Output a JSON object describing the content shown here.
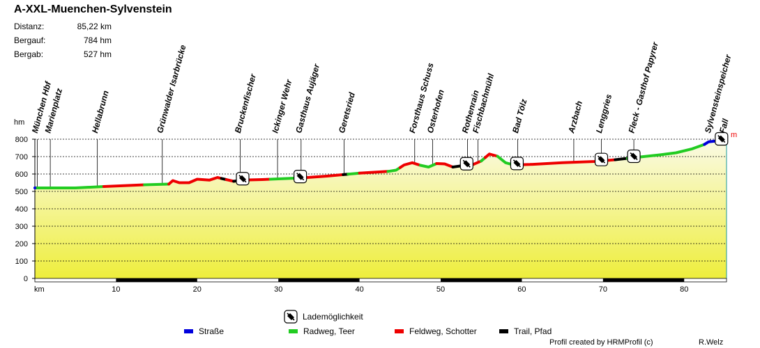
{
  "header": {
    "title": "A-XXL-Muenchen-Sylvenstein",
    "stats": [
      {
        "label": "Distanz:",
        "value": "85,22 km"
      },
      {
        "label": "Bergauf:",
        "value": "784 hm"
      },
      {
        "label": "Bergab:",
        "value": "527 hm"
      }
    ]
  },
  "footer": {
    "credit": "Profil created by HRMProfil (c)",
    "author": "R.Welz"
  },
  "chart_data": {
    "type": "area",
    "title": "A-XXL-Muenchen-Sylvenstein",
    "xlabel": "km",
    "ylabel": "hm",
    "xlim": [
      0,
      85.22
    ],
    "ylim": [
      0,
      800
    ],
    "x_ticks": [
      10,
      20,
      30,
      40,
      50,
      60,
      70,
      80
    ],
    "y_ticks": [
      0,
      100,
      200,
      300,
      400,
      500,
      600,
      700,
      800
    ],
    "grid": true,
    "end_label": "m",
    "profile": [
      {
        "km": 0,
        "hm": 520
      },
      {
        "km": 5,
        "hm": 520
      },
      {
        "km": 8.5,
        "hm": 528
      },
      {
        "km": 13.5,
        "hm": 538
      },
      {
        "km": 16.5,
        "hm": 542
      },
      {
        "km": 17,
        "hm": 562
      },
      {
        "km": 17.8,
        "hm": 550
      },
      {
        "km": 19,
        "hm": 550
      },
      {
        "km": 20,
        "hm": 570
      },
      {
        "km": 21.5,
        "hm": 565
      },
      {
        "km": 22.5,
        "hm": 580
      },
      {
        "km": 23.2,
        "hm": 572
      },
      {
        "km": 24.5,
        "hm": 558
      },
      {
        "km": 25.5,
        "hm": 565
      },
      {
        "km": 28,
        "hm": 568
      },
      {
        "km": 30,
        "hm": 572
      },
      {
        "km": 33,
        "hm": 578
      },
      {
        "km": 36,
        "hm": 588
      },
      {
        "km": 40,
        "hm": 605
      },
      {
        "km": 43.5,
        "hm": 615
      },
      {
        "km": 44.5,
        "hm": 622
      },
      {
        "km": 45.5,
        "hm": 652
      },
      {
        "km": 46.5,
        "hm": 665
      },
      {
        "km": 47.5,
        "hm": 650
      },
      {
        "km": 48.5,
        "hm": 640
      },
      {
        "km": 49.5,
        "hm": 660
      },
      {
        "km": 50.5,
        "hm": 658
      },
      {
        "km": 51.5,
        "hm": 640
      },
      {
        "km": 53,
        "hm": 650
      },
      {
        "km": 54,
        "hm": 655
      },
      {
        "km": 55,
        "hm": 675
      },
      {
        "km": 56,
        "hm": 715
      },
      {
        "km": 57,
        "hm": 702
      },
      {
        "km": 58,
        "hm": 665
      },
      {
        "km": 59,
        "hm": 652
      },
      {
        "km": 61,
        "hm": 655
      },
      {
        "km": 65,
        "hm": 665
      },
      {
        "km": 69,
        "hm": 672
      },
      {
        "km": 71.5,
        "hm": 682
      },
      {
        "km": 73,
        "hm": 690
      },
      {
        "km": 75,
        "hm": 700
      },
      {
        "km": 77,
        "hm": 710
      },
      {
        "km": 79,
        "hm": 722
      },
      {
        "km": 81,
        "hm": 745
      },
      {
        "km": 82.5,
        "hm": 770
      },
      {
        "km": 83,
        "hm": 785
      },
      {
        "km": 84,
        "hm": 790
      },
      {
        "km": 85.22,
        "hm": 798
      }
    ],
    "segments": [
      {
        "from": 0,
        "to": 0.3,
        "surface": "Straße"
      },
      {
        "from": 0.3,
        "to": 8.5,
        "surface": "Radweg, Teer"
      },
      {
        "from": 8.5,
        "to": 13.5,
        "surface": "Feldweg, Schotter"
      },
      {
        "from": 13.5,
        "to": 16.5,
        "surface": "Radweg, Teer"
      },
      {
        "from": 16.5,
        "to": 23,
        "surface": "Feldweg, Schotter"
      },
      {
        "from": 23,
        "to": 23.6,
        "surface": "Trail, Pfad"
      },
      {
        "from": 23.6,
        "to": 24.5,
        "surface": "Feldweg, Schotter"
      },
      {
        "from": 24.5,
        "to": 25.5,
        "surface": "Trail, Pfad"
      },
      {
        "from": 25.5,
        "to": 29,
        "surface": "Feldweg, Schotter"
      },
      {
        "from": 29,
        "to": 33,
        "surface": "Radweg, Teer"
      },
      {
        "from": 33,
        "to": 38,
        "surface": "Feldweg, Schotter"
      },
      {
        "from": 38,
        "to": 38.6,
        "surface": "Trail, Pfad"
      },
      {
        "from": 38.6,
        "to": 40,
        "surface": "Radweg, Teer"
      },
      {
        "from": 40,
        "to": 43.5,
        "surface": "Feldweg, Schotter"
      },
      {
        "from": 43.5,
        "to": 45,
        "surface": "Radweg, Teer"
      },
      {
        "from": 45,
        "to": 47.5,
        "surface": "Feldweg, Schotter"
      },
      {
        "from": 47.5,
        "to": 49.5,
        "surface": "Radweg, Teer"
      },
      {
        "from": 49.5,
        "to": 51.5,
        "surface": "Feldweg, Schotter"
      },
      {
        "from": 51.5,
        "to": 52.8,
        "surface": "Trail, Pfad"
      },
      {
        "from": 52.8,
        "to": 54,
        "surface": "Radweg, Teer"
      },
      {
        "from": 54,
        "to": 55,
        "surface": "Feldweg, Schotter"
      },
      {
        "from": 55,
        "to": 55.5,
        "surface": "Radweg, Teer"
      },
      {
        "from": 55.5,
        "to": 57,
        "surface": "Feldweg, Schotter"
      },
      {
        "from": 57,
        "to": 59,
        "surface": "Radweg, Teer"
      },
      {
        "from": 59,
        "to": 71.5,
        "surface": "Feldweg, Schotter"
      },
      {
        "from": 71.5,
        "to": 73,
        "surface": "Trail, Pfad"
      },
      {
        "from": 73,
        "to": 82.5,
        "surface": "Radweg, Teer"
      },
      {
        "from": 82.5,
        "to": 85.22,
        "surface": "Straße"
      }
    ],
    "waypoints": [
      {
        "km": 0.3,
        "name": "München Hbf"
      },
      {
        "km": 1.9,
        "name": "Marienplatz"
      },
      {
        "km": 7.7,
        "name": "Hellabrunn"
      },
      {
        "km": 15.7,
        "name": "Grünwalder Isarbrücke"
      },
      {
        "km": 25.3,
        "name": "Bruckenfischer"
      },
      {
        "km": 29.9,
        "name": "Ickinger Wehr"
      },
      {
        "km": 32.8,
        "name": "Gasthaus Aujäger"
      },
      {
        "km": 38.1,
        "name": "Geretsried"
      },
      {
        "km": 46.8,
        "name": "Forsthaus Schuss"
      },
      {
        "km": 49.0,
        "name": "Osterhofen"
      },
      {
        "km": 53.3,
        "name": "Rothenrain"
      },
      {
        "km": 54.6,
        "name": "Fischbachmühl"
      },
      {
        "km": 59.5,
        "name": "Bad Tölz"
      },
      {
        "km": 66.4,
        "name": "Arzbach"
      },
      {
        "km": 69.8,
        "name": "Lenggries"
      },
      {
        "km": 73.8,
        "name": "Fleck - Gasthof Papyrer"
      },
      {
        "km": 83.2,
        "name": "Sylvensteinspeicher"
      },
      {
        "km": 85.0,
        "name": "Fall"
      }
    ],
    "loading_points_km": [
      25.6,
      32.7,
      53.2,
      59.4,
      69.8,
      73.8,
      84.6
    ],
    "legend": {
      "loading_label": "Lademöglichkeit",
      "items": [
        {
          "label": "Straße",
          "color": "#0000dd"
        },
        {
          "label": "Radweg, Teer",
          "color": "#22cc22"
        },
        {
          "label": "Feldweg, Schotter",
          "color": "#ee0000"
        },
        {
          "label": "Trail, Pfad",
          "color": "#000000"
        }
      ]
    },
    "colors": {
      "fill_top": "#fafae6",
      "fill_bottom": "#eeee3c",
      "axis_band": "#000000"
    }
  }
}
